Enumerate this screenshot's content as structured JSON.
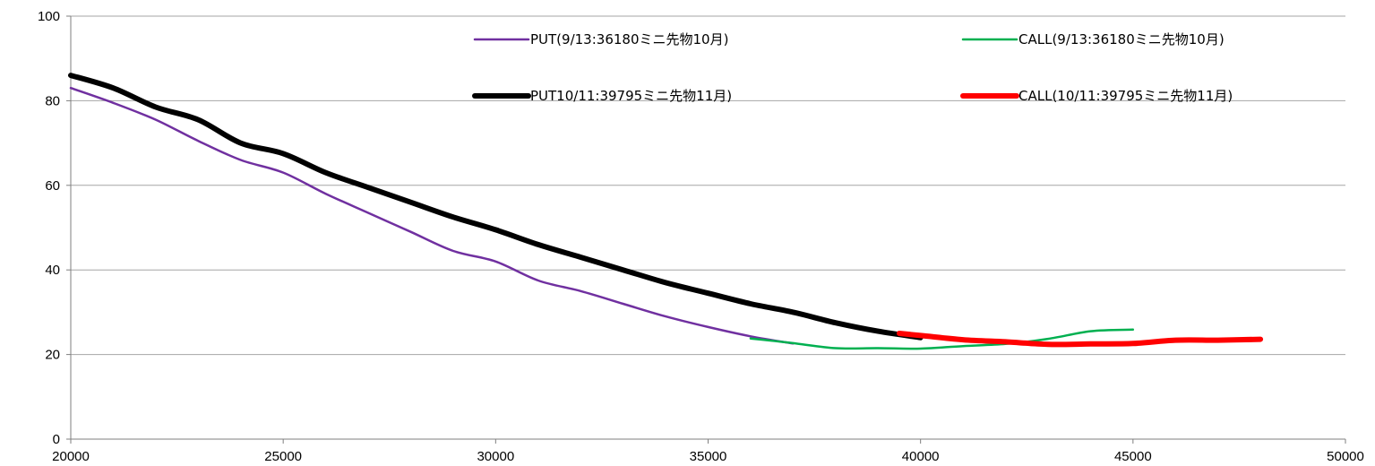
{
  "chart_data": {
    "type": "line",
    "title": "",
    "xlabel": "",
    "ylabel": "",
    "xlim": [
      20000,
      50000
    ],
    "ylim": [
      0,
      100
    ],
    "x_ticks": [
      20000,
      25000,
      30000,
      35000,
      40000,
      45000,
      50000
    ],
    "y_ticks": [
      0,
      20,
      40,
      60,
      80,
      100
    ],
    "grid": "horizontal",
    "legend_position": "top-right",
    "series": [
      {
        "name": "PUT(9/13:36180ミニ先物10月)",
        "color": "#7030a0",
        "width": "thin",
        "x": [
          20000,
          21000,
          22000,
          23000,
          24000,
          25000,
          26000,
          27000,
          28000,
          29000,
          30000,
          31000,
          32000,
          33000,
          34000,
          35000,
          36000,
          37000
        ],
        "y": [
          83,
          79.5,
          75.5,
          70.5,
          66,
          63,
          58,
          53.5,
          49,
          44.5,
          42,
          37.5,
          35,
          32,
          29,
          26.5,
          24.3,
          22.6
        ]
      },
      {
        "name": "CALL(9/13:36180ミニ先物10月)",
        "color": "#00b050",
        "width": "thin",
        "x": [
          36000,
          37000,
          38000,
          39000,
          40000,
          41000,
          42000,
          43000,
          44000,
          45000
        ],
        "y": [
          23.8,
          22.7,
          21.5,
          21.5,
          21.4,
          22,
          22.5,
          23.7,
          25.5,
          25.9
        ]
      },
      {
        "name": "PUT10/11:39795ミニ先物11月)",
        "color": "#000000",
        "width": "thick",
        "x": [
          20000,
          21000,
          22000,
          23000,
          24000,
          25000,
          26000,
          27000,
          28000,
          29000,
          30000,
          31000,
          32000,
          33000,
          34000,
          35000,
          36000,
          37000,
          38000,
          39000,
          40000
        ],
        "y": [
          86,
          83,
          78.5,
          75.5,
          70,
          67.5,
          63,
          59.5,
          56,
          52.5,
          49.5,
          46,
          43,
          40,
          37,
          34.5,
          32,
          30,
          27.5,
          25.5,
          24
        ]
      },
      {
        "name": "CALL(10/11:39795ミニ先物11月)",
        "color": "#ff0000",
        "width": "thick",
        "x": [
          39500,
          40000,
          41000,
          42000,
          43000,
          44000,
          45000,
          46000,
          47000,
          48000
        ],
        "y": [
          25,
          24.5,
          23.5,
          23,
          22.4,
          22.5,
          22.6,
          23.4,
          23.4,
          23.6
        ]
      }
    ]
  }
}
